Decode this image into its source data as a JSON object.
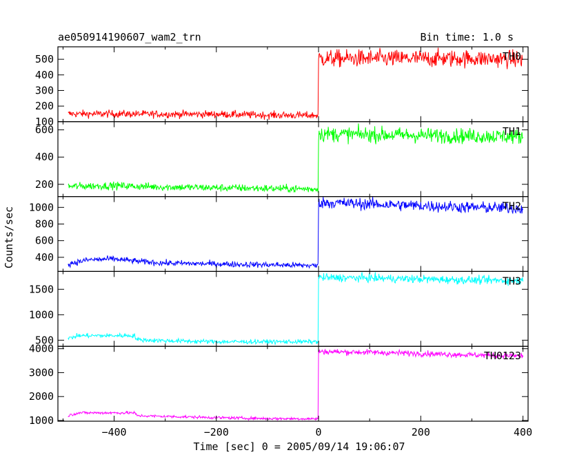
{
  "header": {
    "title": "ae050914190607_wam2_trn",
    "bin_time": "Bin time: 1.0 s"
  },
  "axes": {
    "xlabel": "Time [sec] 0 = 2005/09/14 19:06:07",
    "ylabel": "Counts/sec"
  },
  "chart_data": {
    "type": "line",
    "x_range": [
      -510,
      410
    ],
    "x_ticks": [
      -400,
      -200,
      0,
      200,
      400
    ],
    "x_tick_labels": [
      "−400",
      "−200",
      "0",
      "200",
      "400"
    ],
    "x_start": -490,
    "x_end": 400,
    "step_time": 0,
    "panels": [
      {
        "name": "TH0",
        "color": "#ff0000",
        "ylim": [
          100,
          580
        ],
        "ticks": [
          100,
          200,
          300,
          400,
          500
        ],
        "pre_level": 145,
        "pre_noise": 12,
        "post_level": 505,
        "post_noise": 28,
        "pre_trend": [
          [
            -490,
            150
          ],
          [
            -400,
            150
          ],
          [
            -300,
            148
          ],
          [
            -200,
            148
          ],
          [
            -100,
            142
          ],
          [
            0,
            140
          ]
        ],
        "post_trend": [
          [
            0,
            505
          ],
          [
            100,
            505
          ],
          [
            200,
            505
          ],
          [
            300,
            505
          ],
          [
            400,
            500
          ]
        ]
      },
      {
        "name": "TH1",
        "color": "#00ff00",
        "ylim": [
          110,
          660
        ],
        "ticks": [
          200,
          400,
          600
        ],
        "pre_level": 180,
        "pre_noise": 14,
        "post_level": 565,
        "post_noise": 28,
        "pre_trend": [
          [
            -490,
            185
          ],
          [
            -400,
            190
          ],
          [
            -300,
            180
          ],
          [
            -200,
            175
          ],
          [
            -100,
            170
          ],
          [
            0,
            165
          ]
        ],
        "post_trend": [
          [
            0,
            570
          ],
          [
            100,
            565
          ],
          [
            200,
            560
          ],
          [
            300,
            555
          ],
          [
            400,
            550
          ]
        ]
      },
      {
        "name": "TH2",
        "color": "#0000ff",
        "ylim": [
          230,
          1130
        ],
        "ticks": [
          400,
          600,
          800,
          1000
        ],
        "pre_level": 340,
        "pre_noise": 18,
        "post_level": 1030,
        "post_noise": 35,
        "pre_trend": [
          [
            -490,
            320
          ],
          [
            -450,
            370
          ],
          [
            -400,
            380
          ],
          [
            -350,
            350
          ],
          [
            -300,
            330
          ],
          [
            -200,
            320
          ],
          [
            -100,
            310
          ],
          [
            0,
            300
          ]
        ],
        "post_trend": [
          [
            0,
            1060
          ],
          [
            100,
            1040
          ],
          [
            200,
            1020
          ],
          [
            300,
            1000
          ],
          [
            400,
            990
          ]
        ]
      },
      {
        "name": "TH3",
        "color": "#00ffff",
        "ylim": [
          380,
          1850
        ],
        "ticks": [
          500,
          1000,
          1500
        ],
        "pre_level": 500,
        "pre_noise": 22,
        "post_level": 1700,
        "post_noise": 40,
        "pre_trend": [
          [
            -490,
            530
          ],
          [
            -470,
            590
          ],
          [
            -360,
            590
          ],
          [
            -355,
            510
          ],
          [
            -300,
            490
          ],
          [
            -200,
            470
          ],
          [
            -100,
            470
          ],
          [
            0,
            470
          ]
        ],
        "post_trend": [
          [
            0,
            1730
          ],
          [
            100,
            1720
          ],
          [
            200,
            1700
          ],
          [
            300,
            1680
          ],
          [
            400,
            1670
          ]
        ]
      },
      {
        "name": "TH0123",
        "color": "#ff00ff",
        "ylim": [
          970,
          4100
        ],
        "ticks": [
          1000,
          2000,
          3000,
          4000
        ],
        "pre_level": 1150,
        "pre_noise": 30,
        "post_level": 3800,
        "post_noise": 60,
        "pre_trend": [
          [
            -490,
            1200
          ],
          [
            -470,
            1320
          ],
          [
            -360,
            1320
          ],
          [
            -355,
            1200
          ],
          [
            -300,
            1170
          ],
          [
            -200,
            1120
          ],
          [
            -100,
            1080
          ],
          [
            0,
            1070
          ]
        ],
        "post_trend": [
          [
            0,
            3880
          ],
          [
            100,
            3850
          ],
          [
            200,
            3800
          ],
          [
            300,
            3740
          ],
          [
            400,
            3700
          ]
        ]
      }
    ]
  }
}
